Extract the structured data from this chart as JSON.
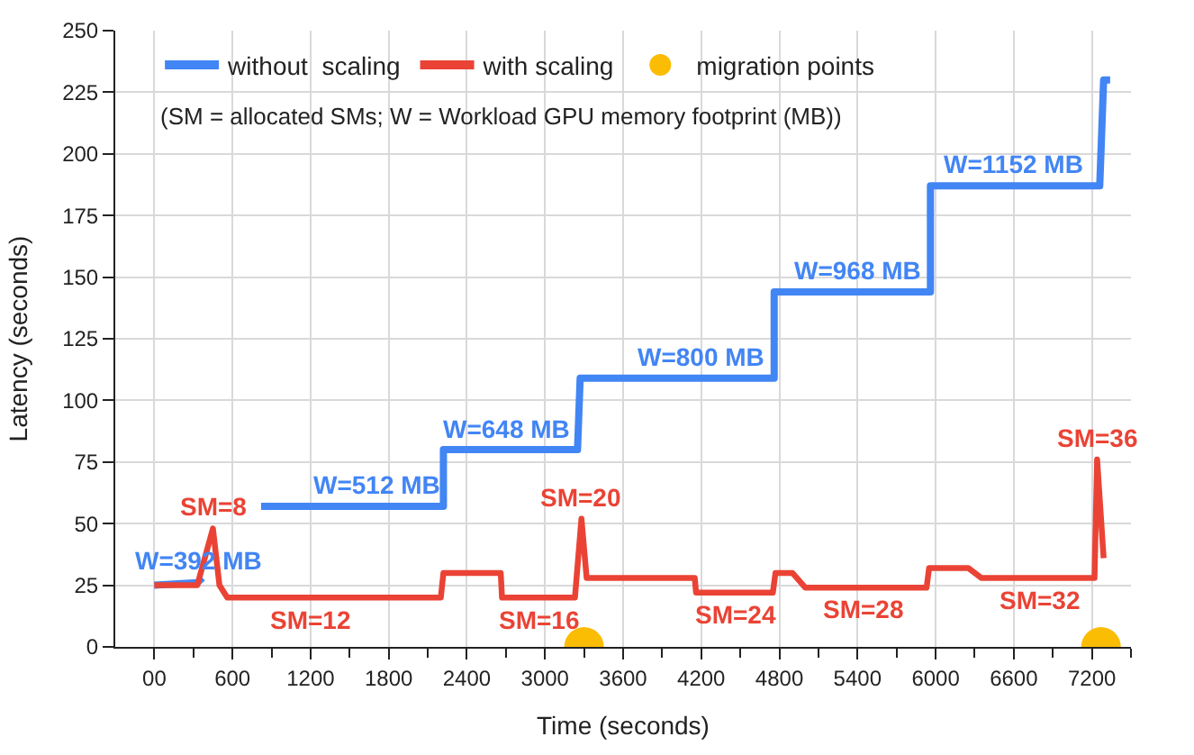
{
  "chart_data": {
    "type": "line",
    "xlabel": "Time (seconds)",
    "ylabel": "Latency (seconds)",
    "annotations": [
      "(SM = allocated SMs; W = Workload GPU memory footprint (MB))",
      {
        "text": "W=392 MB",
        "x": 330,
        "y": 26
      },
      {
        "text": "W=512 MB",
        "x": 1700,
        "y": 57
      },
      {
        "text": "W=648 MB",
        "x": 2700,
        "y": 80
      },
      {
        "text": "W=800 MB",
        "x": 4200,
        "y": 109
      },
      {
        "text": "W=968 MB",
        "x": 5400,
        "y": 144
      },
      {
        "text": "W=1152 MB",
        "x": 6600,
        "y": 187
      },
      {
        "text": "SM=8",
        "x": 450,
        "y": 48
      },
      {
        "text": "SM=12",
        "x": 1200,
        "y": 20
      },
      {
        "text": "SM=16",
        "x": 2960,
        "y": 20
      },
      {
        "text": "SM=20",
        "x": 3280,
        "y": 52
      },
      {
        "text": "SM=24",
        "x": 4470,
        "y": 22
      },
      {
        "text": "SM=28",
        "x": 5450,
        "y": 24
      },
      {
        "text": "SM=32",
        "x": 6800,
        "y": 28
      },
      {
        "text": "SM=36",
        "x": 7240,
        "y": 76
      }
    ],
    "xlim": [
      -300,
      7500
    ],
    "xticks": [
      {
        "value": 0,
        "label": "00"
      },
      {
        "value": 300,
        "label": null
      },
      600,
      {
        "value": 900,
        "label": null
      },
      1200,
      {
        "value": 1500,
        "label": null
      },
      1800,
      {
        "value": 2100,
        "label": null
      },
      2400,
      {
        "value": 2700,
        "label": null
      },
      3000,
      {
        "value": 3300,
        "label": null
      },
      3600,
      {
        "value": 3900,
        "label": null
      },
      4200,
      {
        "value": 4500,
        "label": null
      },
      4800,
      {
        "value": 5100,
        "label": null
      },
      5400,
      {
        "value": 5700,
        "label": null
      },
      6000,
      {
        "value": 6300,
        "label": null
      },
      6600,
      {
        "value": 6900,
        "label": null
      },
      7200,
      {
        "value": 7500,
        "label": null
      }
    ],
    "ylim": [
      0,
      250
    ],
    "yticks": [
      0,
      25,
      50,
      75,
      100,
      125,
      150,
      175,
      200,
      225,
      250
    ],
    "grid": true,
    "legend": "top left",
    "marker": "none",
    "line_style": "solid",
    "series": [
      {
        "name": "without  scaling",
        "color": "#4285f4",
        "x": [
          0,
          330,
          370,
          600,
          820,
          1660,
          2220,
          2220,
          3250,
          3270,
          4760,
          4760,
          5960,
          5960,
          7260,
          7290,
          7340
        ],
        "values": [
          25,
          26,
          28,
          null,
          57,
          57,
          57,
          80,
          80,
          109,
          109,
          144,
          144,
          187,
          187,
          230,
          230
        ]
      },
      {
        "name": "with scaling",
        "color": "#ea4335",
        "x": [
          0,
          330,
          450,
          500,
          560,
          600,
          2200,
          2220,
          2660,
          2670,
          2750,
          3230,
          3280,
          3320,
          4150,
          4160,
          4450,
          4750,
          4770,
          4900,
          5000,
          5150,
          5930,
          5950,
          6250,
          6350,
          6400,
          7220,
          7240,
          7290
        ],
        "values": [
          25,
          25,
          48,
          25,
          20,
          20,
          20,
          30,
          30,
          20,
          20,
          20,
          52,
          28,
          28,
          22,
          22,
          22,
          30,
          30,
          24,
          24,
          24,
          32,
          32,
          28,
          28,
          28,
          76,
          36
        ]
      },
      {
        "name": "migration points",
        "type": "scatter",
        "marker": "circle",
        "color": "#fbbc04",
        "x": [
          3300,
          7270
        ],
        "values": [
          0,
          0
        ]
      }
    ]
  }
}
